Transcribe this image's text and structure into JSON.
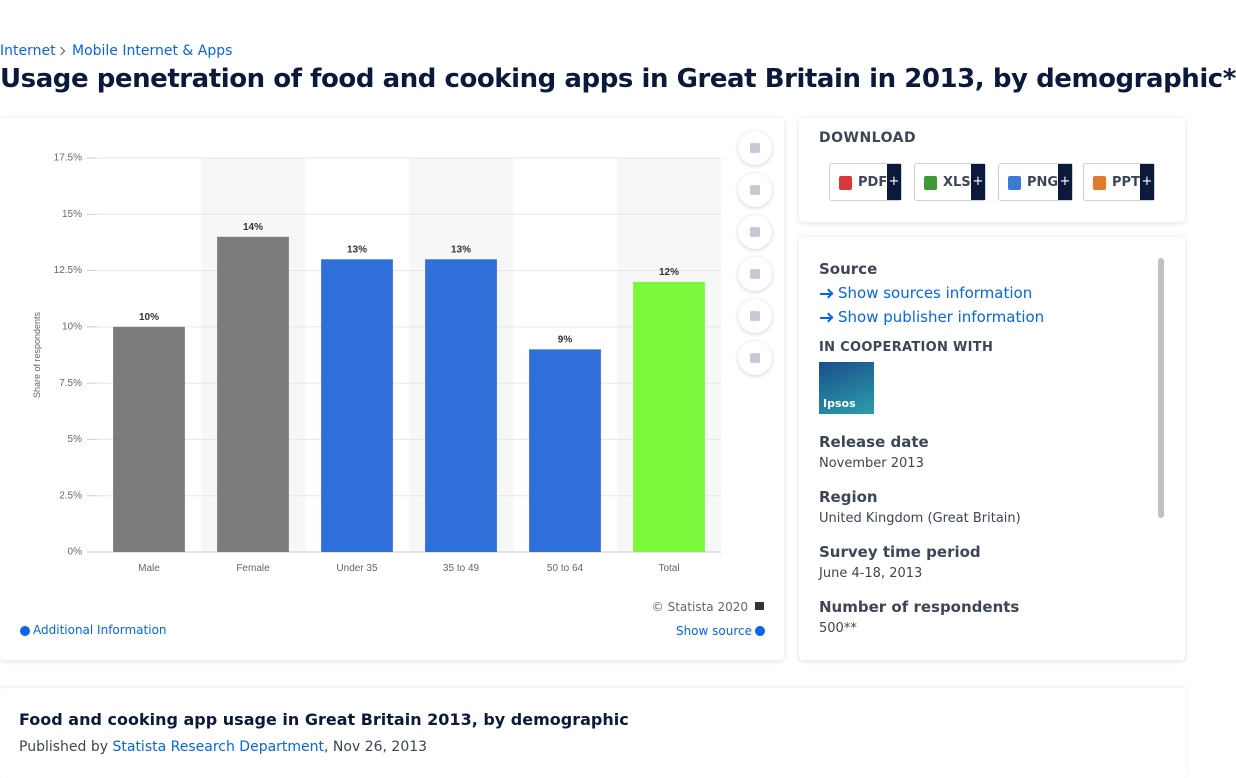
{
  "breadcrumb": [
    "Internet",
    "Mobile Internet & Apps"
  ],
  "title": "Usage penetration of food and cooking apps in Great Britain in 2013, by demographic*",
  "chart_data": {
    "type": "bar",
    "categories": [
      "Male",
      "Female",
      "Under 35",
      "35 to 49",
      "50 to 64",
      "Total"
    ],
    "values": [
      10,
      14,
      13,
      13,
      9,
      12
    ],
    "value_labels": [
      "10%",
      "14%",
      "13%",
      "13%",
      "9%",
      "12%"
    ],
    "colors": [
      "#7b7b7b",
      "#7b7b7b",
      "#2f6fd9",
      "#2f6fd9",
      "#2f6fd9",
      "#7cf83c"
    ],
    "ylabel": "Share of respondents",
    "ylim": [
      0,
      17.5
    ],
    "yticks": [
      {
        "value": 0,
        "label": "0%"
      },
      {
        "value": 2.5,
        "label": "2.5%"
      },
      {
        "value": 5,
        "label": "5%"
      },
      {
        "value": 7.5,
        "label": "7.5%"
      },
      {
        "value": 10,
        "label": "10%"
      },
      {
        "value": 12.5,
        "label": "12.5%"
      },
      {
        "value": 15,
        "label": "15%"
      },
      {
        "value": 17.5,
        "label": "17.5%"
      }
    ],
    "grid": true
  },
  "chart_footer": {
    "copyright": "© Statista 2020",
    "additional": "Additional Information",
    "show_source": "Show source"
  },
  "download": {
    "title": "DOWNLOAD",
    "formats": [
      "PDF",
      "XLS",
      "PNG",
      "PPT"
    ],
    "plus": "+"
  },
  "sidebar": {
    "source_heading": "Source",
    "links": [
      "Show sources information",
      "Show publisher information"
    ],
    "cooperation": "IN COOPERATION WITH",
    "logo": "Ipsos",
    "fields": [
      {
        "label": "Release date",
        "value": "November 2013"
      },
      {
        "label": "Region",
        "value": "United Kingdom (Great Britain)"
      },
      {
        "label": "Survey time period",
        "value": "June 4-18, 2013"
      },
      {
        "label": "Number of respondents",
        "value": "500**"
      }
    ]
  },
  "description": {
    "heading": "Food and cooking app usage in Great Britain 2013, by demographic",
    "prefix": "Published by",
    "author": "Statista Research Department",
    "separator": ",",
    "date": "Nov 26, 2013"
  }
}
